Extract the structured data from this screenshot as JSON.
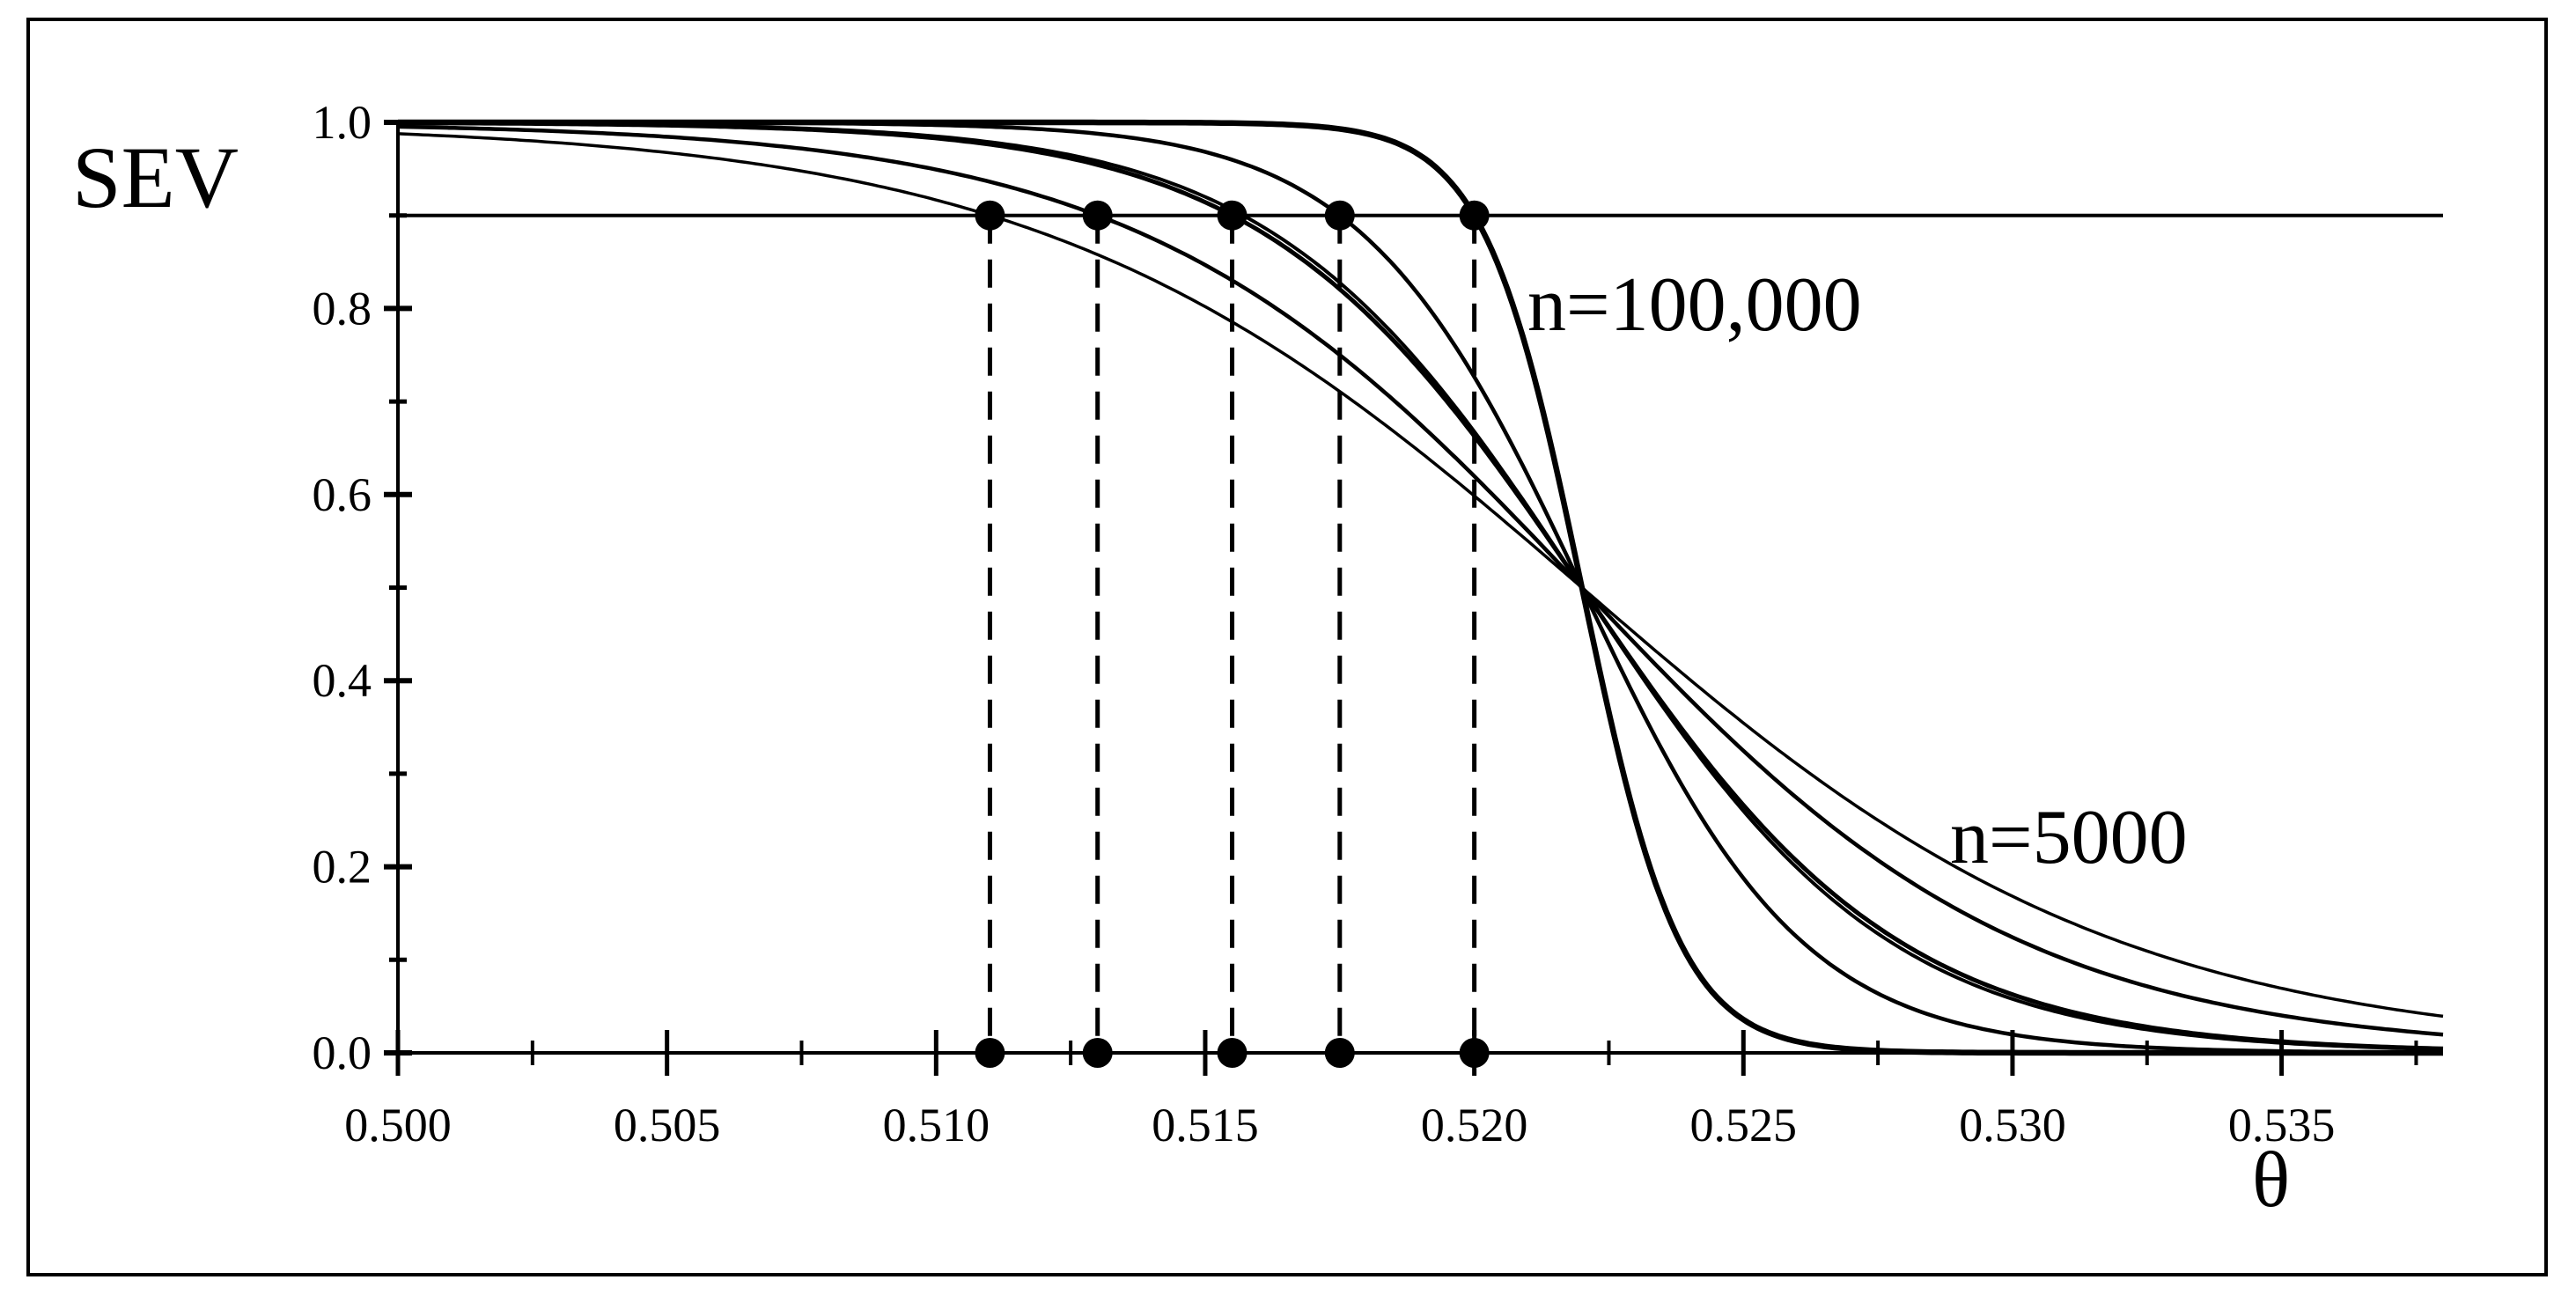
{
  "chart_data": {
    "type": "line",
    "title": "",
    "xlabel": "θ",
    "ylabel": "SEV",
    "xlim": [
      0.5,
      0.538
    ],
    "ylim": [
      0.0,
      1.0
    ],
    "xticks": [
      "0.500",
      "0.505",
      "0.510",
      "0.515",
      "0.520",
      "0.525",
      "0.530",
      "0.535"
    ],
    "yticks": [
      "0.0",
      "0.2",
      "0.4",
      "0.6",
      "0.8",
      "1.0"
    ],
    "threshold_line": 0.9,
    "crossing_point": {
      "x": 0.522,
      "y": 0.5
    },
    "series": [
      {
        "name": "n=5000",
        "x0": 0.511,
        "stroke": 3.5
      },
      {
        "x0": 0.513,
        "stroke": 4.5
      },
      {
        "x0": 0.5155,
        "stroke": 5
      },
      {
        "x0": 0.5157,
        "stroke": 4
      },
      {
        "x0": 0.5175,
        "stroke": 4.5
      },
      {
        "name": "n=100,000",
        "x0": 0.52,
        "stroke": 6.5
      }
    ],
    "severity_points": [
      {
        "x": 0.511,
        "y": 0.9
      },
      {
        "x": 0.513,
        "y": 0.9
      },
      {
        "x": 0.5155,
        "y": 0.9
      },
      {
        "x": 0.5175,
        "y": 0.9
      },
      {
        "x": 0.52,
        "y": 0.9
      }
    ],
    "annotations": [
      "n=100,000",
      "n=5000"
    ],
    "grid": false,
    "legend": "none",
    "colors": {
      "ink": "#000000",
      "background": "#ffffff"
    }
  }
}
